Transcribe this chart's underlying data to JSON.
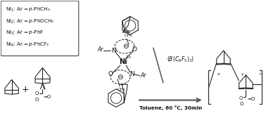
{
  "background_color": "#ffffff",
  "figsize": [
    3.78,
    1.78
  ],
  "dpi": 100,
  "box_lines": [
    "Ni1: Ar=p-PhCH₃",
    "Ni2: Ar=p-PhOCH₃",
    "Ni3: Ar=p-PhF",
    "Ni4: Ar=p-PhCF₃"
  ],
  "arrow_label": "Toluene, 60 °C, 30min",
  "catalyst_label": "(B(C₆F₅)₃)",
  "line_color": "#1a1a1a",
  "text_color": "#111111"
}
